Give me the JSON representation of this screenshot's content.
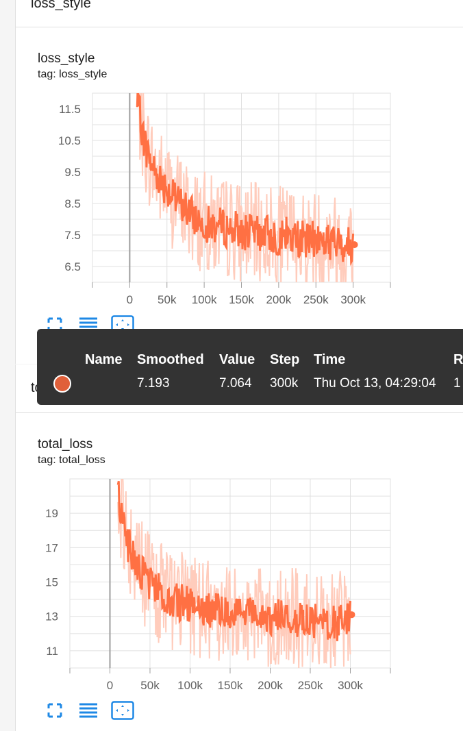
{
  "sections": {
    "first_header": "loss_style",
    "second_header": "total_loss"
  },
  "charts": [
    {
      "title": "loss_style",
      "tag": "tag: loss_style"
    },
    {
      "title": "total_loss",
      "tag": "tag: total_loss"
    }
  ],
  "tooltip": {
    "headers": [
      "Name",
      "Smoothed",
      "Value",
      "Step",
      "Time",
      "R"
    ],
    "row": {
      "smoothed": "7.193",
      "value": "7.064",
      "step": "300k",
      "time": "Thu Oct 13, 04:29:04",
      "relative": "1"
    },
    "marker_color": "#e0603a"
  },
  "colors": {
    "smoothed_line": "#ff7043",
    "raw_line": "#ffccbc",
    "axis": "#9e9e9e",
    "icon": "#1e88e5"
  },
  "icons": [
    "fullscreen-icon",
    "toggle-y-log-icon",
    "fit-domain-icon"
  ],
  "chart_data": [
    {
      "type": "line",
      "title": "loss_style",
      "xlabel": "",
      "ylabel": "",
      "x_ticks": [
        "0",
        "50k",
        "100k",
        "150k",
        "200k",
        "250k",
        "300k"
      ],
      "y_ticks": [
        "6.5",
        "7.5",
        "8.5",
        "9.5",
        "10.5",
        "11.5"
      ],
      "xlim": [
        -50000,
        350000
      ],
      "ylim": [
        6.0,
        12.0
      ],
      "grid": true,
      "series": [
        {
          "x": [
            10000,
            20000,
            30000,
            40000,
            50000,
            60000,
            70000,
            80000,
            90000,
            100000,
            110000,
            120000,
            130000,
            140000,
            150000,
            160000,
            170000,
            180000,
            190000,
            200000,
            210000,
            220000,
            230000,
            240000,
            250000,
            260000,
            270000,
            280000,
            290000,
            300000
          ],
          "y": [
            11.8,
            10.4,
            9.7,
            9.3,
            9.0,
            8.6,
            8.5,
            8.2,
            8.0,
            7.9,
            7.8,
            7.8,
            7.7,
            7.7,
            7.6,
            7.6,
            7.5,
            7.6,
            7.5,
            7.4,
            7.5,
            7.4,
            7.4,
            7.3,
            7.4,
            7.3,
            7.3,
            7.2,
            7.2,
            7.193
          ]
        }
      ]
    },
    {
      "type": "line",
      "title": "total_loss",
      "xlabel": "",
      "ylabel": "",
      "x_ticks": [
        "0",
        "50k",
        "100k",
        "150k",
        "200k",
        "250k",
        "300k"
      ],
      "y_ticks": [
        "11",
        "13",
        "15",
        "17",
        "19"
      ],
      "xlim": [
        -50000,
        350000
      ],
      "ylim": [
        10.0,
        21.0
      ],
      "grid": true,
      "series": [
        {
          "x": [
            10000,
            20000,
            30000,
            40000,
            50000,
            60000,
            70000,
            80000,
            90000,
            100000,
            110000,
            120000,
            130000,
            140000,
            150000,
            160000,
            170000,
            180000,
            190000,
            200000,
            210000,
            220000,
            230000,
            240000,
            250000,
            260000,
            270000,
            280000,
            290000,
            300000
          ],
          "y": [
            20.0,
            17.5,
            16.3,
            15.5,
            15.0,
            14.5,
            14.2,
            13.9,
            13.8,
            13.6,
            13.5,
            13.4,
            13.3,
            13.3,
            13.2,
            13.2,
            13.1,
            13.1,
            13.0,
            13.0,
            13.0,
            12.9,
            12.9,
            12.8,
            12.8,
            12.8,
            12.7,
            12.7,
            12.6,
            13.1
          ]
        }
      ]
    }
  ]
}
